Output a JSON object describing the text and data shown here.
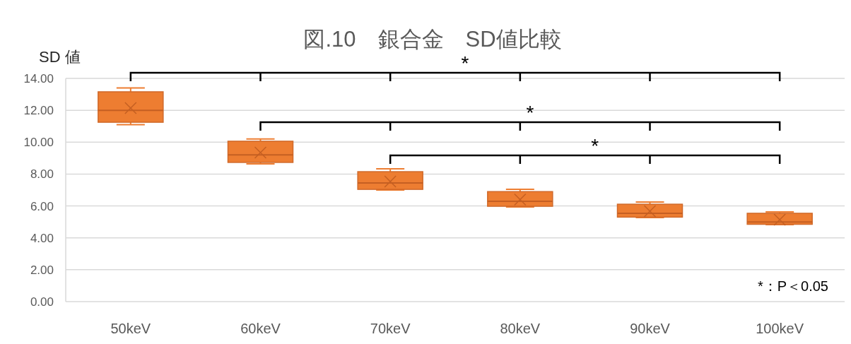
{
  "chart_data": {
    "type": "box",
    "title": "図.10　銀合金　SD値比較",
    "ylabel": "SD 値",
    "categories": [
      "50keV",
      "60keV",
      "70keV",
      "80keV",
      "90keV",
      "100keV"
    ],
    "series": [
      {
        "color": "#ed7d31",
        "boxes": [
          {
            "low": 11.1,
            "q1": 11.25,
            "median": 12.0,
            "q3": 13.16,
            "high": 13.4,
            "mean": 12.14
          },
          {
            "low": 8.64,
            "q1": 8.73,
            "median": 9.2,
            "q3": 10.06,
            "high": 10.2,
            "mean": 9.35
          },
          {
            "low": 7.0,
            "q1": 7.04,
            "median": 7.44,
            "q3": 8.15,
            "high": 8.33,
            "mean": 7.53
          },
          {
            "low": 5.94,
            "q1": 5.98,
            "median": 6.29,
            "q3": 6.9,
            "high": 7.04,
            "mean": 6.4
          },
          {
            "low": 5.27,
            "q1": 5.3,
            "median": 5.54,
            "q3": 6.11,
            "high": 6.25,
            "mean": 5.67
          },
          {
            "low": 4.83,
            "q1": 4.85,
            "median": 5.0,
            "q3": 5.54,
            "high": 5.63,
            "mean": 5.14
          }
        ]
      }
    ],
    "ylim": [
      0,
      14
    ],
    "yticks": [
      {
        "value": 0,
        "label": "0.00"
      },
      {
        "value": 2,
        "label": "2.00"
      },
      {
        "value": 4,
        "label": "4.00"
      },
      {
        "value": 6,
        "label": "6.00"
      },
      {
        "value": 8,
        "label": "8.00"
      },
      {
        "value": 10,
        "label": "10.00"
      },
      {
        "value": 12,
        "label": "12.00"
      },
      {
        "value": 14,
        "label": "14.00"
      }
    ],
    "grid": "y",
    "annotations": [
      "*",
      "*",
      "*",
      "*：P＜0.05"
    ]
  }
}
